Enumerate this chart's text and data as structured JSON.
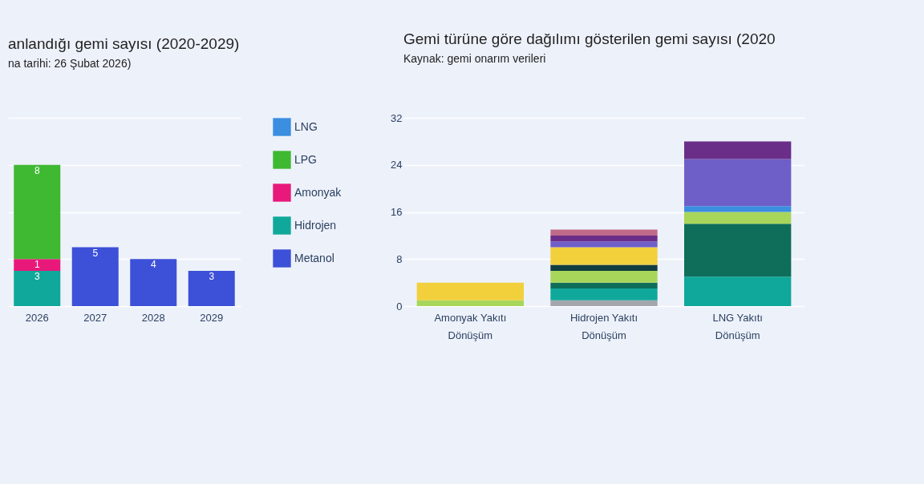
{
  "chart_data": [
    {
      "type": "bar",
      "title": "anlandığı gemi sayısı (2020-2029)",
      "subtitle": "na tarihi: 26 Şubat 2026)",
      "categories": [
        "2026",
        "2027",
        "2028",
        "2029"
      ],
      "stacked": true,
      "data_labels": true,
      "grid": "y",
      "legend": "right",
      "tick_labels": "x",
      "ylim": [
        0,
        16
      ],
      "yticks": [
        {
          "value": 0,
          "label": null
        },
        {
          "value": 4,
          "label": null
        },
        {
          "value": 8,
          "label": null
        },
        {
          "value": 12,
          "label": null
        },
        {
          "value": 16,
          "label": null
        }
      ],
      "series": [
        {
          "name": "Metanol",
          "color": "#3c50d8",
          "values": [
            null,
            5,
            4,
            3
          ]
        },
        {
          "name": "Hidrojen",
          "color": "#10a89a",
          "values": [
            3,
            null,
            null,
            null
          ]
        },
        {
          "name": "Amonyak",
          "color": "#e8197a",
          "values": [
            1,
            null,
            null,
            null
          ]
        },
        {
          "name": "LPG",
          "color": "#3fb832",
          "values": [
            8,
            null,
            null,
            null
          ]
        },
        {
          "name": "LNG",
          "color": "#3b8ee0",
          "values": [
            null,
            null,
            null,
            null
          ]
        }
      ]
    },
    {
      "type": "bar",
      "title": "Gemi türüne göre dağılımı gösterilen gemi sayısı (2020",
      "subtitle": "Kaynak: gemi onarım verileri",
      "categories": [
        "Amonyak Yakıtı Dönüşüm",
        "Hidrojen Yakıtı Dönüşüm",
        "LNG Yakıtı Dönüşüm"
      ],
      "stacked": true,
      "grid": "y",
      "ylim": [
        0,
        32
      ],
      "yticks": [
        0,
        8,
        16,
        24,
        32
      ],
      "series": [
        {
          "color": "#a3a7ad",
          "values": [
            null,
            1,
            null
          ]
        },
        {
          "color": "#10a89a",
          "values": [
            null,
            2,
            5
          ]
        },
        {
          "color": "#0e6e5a",
          "values": [
            null,
            1,
            9
          ]
        },
        {
          "color": "#a8d65a",
          "values": [
            1,
            2,
            2
          ]
        },
        {
          "color": "#3b8ee0",
          "values": [
            null,
            null,
            1
          ]
        },
        {
          "color": "#0f3d40",
          "values": [
            null,
            1,
            null
          ]
        },
        {
          "color": "#f2d03c",
          "values": [
            3,
            3,
            null
          ]
        },
        {
          "color": "#6e5fc8",
          "values": [
            null,
            1,
            8
          ]
        },
        {
          "color": "#6a2e88",
          "values": [
            null,
            1,
            3
          ]
        },
        {
          "color": "#c06a8a",
          "values": [
            null,
            1,
            null
          ]
        }
      ]
    }
  ]
}
